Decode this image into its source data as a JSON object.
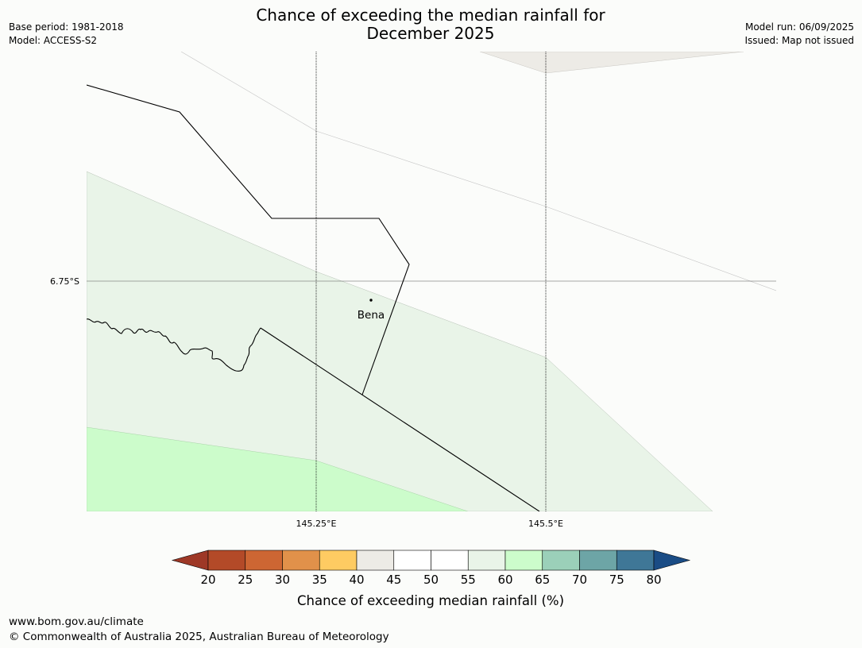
{
  "header": {
    "base_period": "Base period: 1981-2018",
    "model": "Model: ACCESS-S2",
    "title_line1": "Chance of exceeding the median rainfall for",
    "title_line2": "December 2025",
    "model_run": "Model run: 06/09/2025",
    "issued": "Issued: Map not issued"
  },
  "map": {
    "place_label": "Bena",
    "lat_labels": [
      "6.75°S"
    ],
    "lon_labels": [
      "145.25°E",
      "145.5°E"
    ],
    "fill_colors": {
      "40-45": "#edebe6",
      "55-60": "#e9f4e8",
      "60-65": "#ccfccb"
    }
  },
  "legend": {
    "ticks": [
      "20",
      "25",
      "30",
      "35",
      "40",
      "45",
      "50",
      "55",
      "60",
      "65",
      "70",
      "75",
      "80"
    ],
    "colors": [
      "#9e3826",
      "#b34a28",
      "#cd6633",
      "#e1914a",
      "#fecb62",
      "#edebe6",
      "#ffffff",
      "#ffffff",
      "#e9f4e8",
      "#ccfccb",
      "#9bd0b9",
      "#6da5a6",
      "#3f7797",
      "#1a4c85"
    ],
    "label": "Chance of exceeding median rainfall (%)"
  },
  "footer": {
    "url": "www.bom.gov.au/climate",
    "copyright": "© Commonwealth of Australia 2025, Australian Bureau of Meteorology"
  }
}
